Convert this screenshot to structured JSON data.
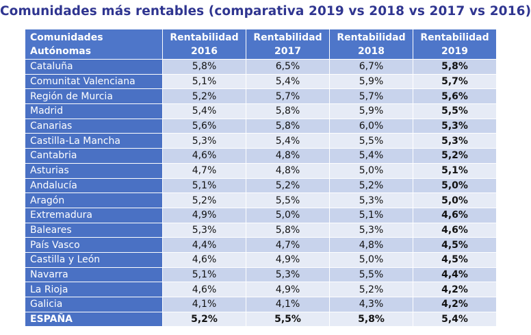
{
  "title": "Comunidades más rentables (comparativa 2019 vs 2018 vs 2017 vs 2016)",
  "table": {
    "headers": {
      "name": [
        "Comunidades",
        "Autónomas"
      ],
      "y2016": [
        "Rentabilidad",
        "2016"
      ],
      "y2017": [
        "Rentabilidad",
        "2017"
      ],
      "y2018": [
        "Rentabilidad",
        "2018"
      ],
      "y2019": [
        "Rentabilidad",
        "2019"
      ]
    },
    "rows": [
      {
        "name": "Cataluña",
        "v2016": "5,8%",
        "v2017": "6,5%",
        "v2018": "6,7%",
        "v2019": "5,8%"
      },
      {
        "name": "Comunitat Valenciana",
        "v2016": "5,1%",
        "v2017": "5,4%",
        "v2018": "5,9%",
        "v2019": "5,7%"
      },
      {
        "name": "Región de Murcia",
        "v2016": "5,2%",
        "v2017": "5,7%",
        "v2018": "5,7%",
        "v2019": "5,6%"
      },
      {
        "name": "Madrid",
        "v2016": "5,4%",
        "v2017": "5,8%",
        "v2018": "5,9%",
        "v2019": "5,5%"
      },
      {
        "name": "Canarias",
        "v2016": "5,6%",
        "v2017": "5,8%",
        "v2018": "6,0%",
        "v2019": "5,3%"
      },
      {
        "name": "Castilla-La Mancha",
        "v2016": "5,3%",
        "v2017": "5,4%",
        "v2018": "5,5%",
        "v2019": "5,3%"
      },
      {
        "name": "Cantabria",
        "v2016": "4,6%",
        "v2017": "4,8%",
        "v2018": "5,4%",
        "v2019": "5,2%"
      },
      {
        "name": "Asturias",
        "v2016": "4,7%",
        "v2017": "4,8%",
        "v2018": "5,0%",
        "v2019": "5,1%"
      },
      {
        "name": "Andalucía",
        "v2016": "5,1%",
        "v2017": "5,2%",
        "v2018": "5,2%",
        "v2019": "5,0%"
      },
      {
        "name": "Aragón",
        "v2016": "5,2%",
        "v2017": "5,5%",
        "v2018": "5,3%",
        "v2019": "5,0%"
      },
      {
        "name": "Extremadura",
        "v2016": "4,9%",
        "v2017": "5,0%",
        "v2018": "5,1%",
        "v2019": "4,6%"
      },
      {
        "name": "Baleares",
        "v2016": "5,3%",
        "v2017": "5,8%",
        "v2018": "5,3%",
        "v2019": "4,6%"
      },
      {
        "name": "País Vasco",
        "v2016": "4,4%",
        "v2017": "4,7%",
        "v2018": "4,8%",
        "v2019": "4,5%"
      },
      {
        "name": "Castilla y León",
        "v2016": "4,6%",
        "v2017": "4,9%",
        "v2018": "5,0%",
        "v2019": "4,5%"
      },
      {
        "name": "Navarra",
        "v2016": "5,1%",
        "v2017": "5,3%",
        "v2018": "5,5%",
        "v2019": "4,4%"
      },
      {
        "name": "La Rioja",
        "v2016": "4,6%",
        "v2017": "4,9%",
        "v2018": "5,2%",
        "v2019": "4,2%"
      },
      {
        "name": "Galicia",
        "v2016": "4,1%",
        "v2017": "4,1%",
        "v2018": "4,3%",
        "v2019": "4,2%"
      }
    ],
    "total": {
      "name": "ESPAÑA",
      "v2016": "5,2%",
      "v2017": "5,5%",
      "v2018": "5,8%",
      "v2019": "5,4%"
    }
  },
  "colors": {
    "title": "#2f3590",
    "header_bg": "#4e76c9",
    "name_bg": "#4a71c4",
    "row_dark": "#c8d3ec",
    "row_light": "#e6ebf6"
  }
}
